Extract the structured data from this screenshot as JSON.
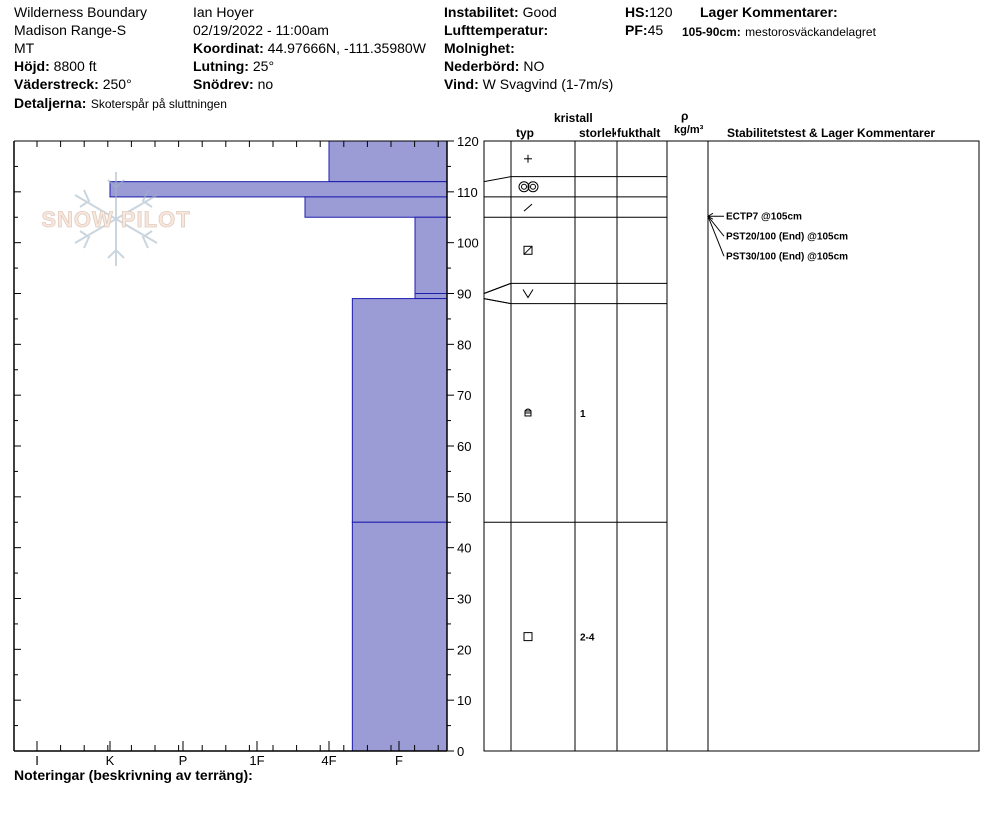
{
  "header": {
    "location": "Wilderness Boundary",
    "range": "Madison Range-S",
    "state": "MT",
    "elevation_label": "Höjd:",
    "elevation": "8800 ft",
    "aspect_label": "Väderstreck:",
    "aspect": "250°",
    "details_label": "Detaljerna:",
    "details": "Skoterspår på sluttningen",
    "observer": "Ian Hoyer",
    "datetime": "02/19/2022 - 11:00am",
    "coord_label": "Koordinat:",
    "coord": "44.97666N, -111.35980W",
    "slope_label": "Lutning:",
    "slope": "25°",
    "drift_label": "Snödrev:",
    "drift": "no",
    "instability_label": "Instabilitet:",
    "instability": "Good",
    "airtemp_label": "Lufttemperatur:",
    "airtemp": "",
    "cloud_label": "Molnighet:",
    "cloud": "",
    "precip_label": "Nederbörd:",
    "precip": "NO",
    "wind_label": "Vind:",
    "wind": "W Svagvind (1-7m/s)",
    "hs_label": "HS:",
    "hs": "120",
    "pf_label": "PF:",
    "pf": "45",
    "layer_comments_label": "Lager Kommentarer:",
    "layer_comment_range": "105-90cm:",
    "layer_comment_text": "mestorosväckandelagret"
  },
  "columns": {
    "crystal": "kristall",
    "type": "typ",
    "size": "storlek",
    "moisture": "fukthalt",
    "rho": "ρ",
    "density_unit": "kg/m³",
    "stability": "Stabilitetstest & Lager Kommentarer"
  },
  "notes_label": "Noteringar (beskrivning av terräng):",
  "logo_text": "SNOW PILOT",
  "colors": {
    "hardness_fill": "#9b9bd6",
    "hardness_edge": "#1c1cad"
  },
  "chart_data": {
    "type": "bar",
    "ylabel": "",
    "ylim": [
      0,
      120
    ],
    "y_ticks": [
      0,
      10,
      20,
      30,
      40,
      50,
      60,
      70,
      80,
      90,
      100,
      110,
      120
    ],
    "hardness_ticks": [
      "I",
      "K",
      "P",
      "1F",
      "4F",
      "F"
    ],
    "hardness_layers": [
      {
        "top": 120,
        "bottom": 112,
        "hardness": "4F"
      },
      {
        "top": 112,
        "bottom": 109,
        "hardness": "K"
      },
      {
        "top": 109,
        "bottom": 105,
        "hardness": "4F-"
      },
      {
        "top": 105,
        "bottom": 90,
        "hardness": "F+"
      },
      {
        "top": 90,
        "bottom": 89,
        "hardness": "F+"
      },
      {
        "top": 89,
        "bottom": 45,
        "hardness": "4F+"
      },
      {
        "top": 45,
        "bottom": 0,
        "hardness": "4F+"
      }
    ],
    "layer_table": [
      {
        "top": 120,
        "bottom": 113,
        "type_icon": "plus",
        "size": ""
      },
      {
        "top": 113,
        "bottom": 109,
        "type_icon": "double-circle",
        "size": ""
      },
      {
        "top": 109,
        "bottom": 105,
        "type_icon": "slash",
        "size": ""
      },
      {
        "top": 105,
        "bottom": 92,
        "type_icon": "hatched-square",
        "size": ""
      },
      {
        "top": 92,
        "bottom": 88,
        "type_icon": "chevron",
        "size": ""
      },
      {
        "top": 88,
        "bottom": 45,
        "type_icon": "rounded-square",
        "size": "1"
      },
      {
        "top": 45,
        "bottom": 0,
        "type_icon": "square",
        "size": "2-4"
      }
    ],
    "stability_tests": [
      {
        "depth": 105,
        "label": "ECTP7 @105cm"
      },
      {
        "depth": 105,
        "label": "PST20/100 (End) @105cm"
      },
      {
        "depth": 105,
        "label": "PST30/100 (End) @105cm"
      }
    ]
  }
}
